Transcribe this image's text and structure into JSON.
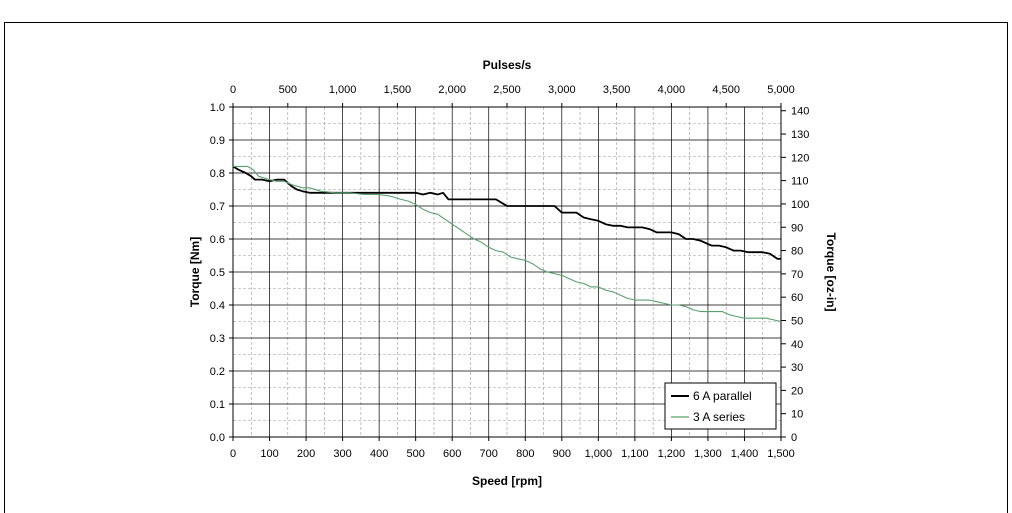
{
  "chart_data": {
    "type": "line",
    "title": "",
    "xlabel": "Speed [rpm]",
    "ylabel": "Torque [Nm]",
    "x2label": "Pulses/s",
    "y2label": "Torque [oz-in]",
    "xlim": [
      0,
      1500
    ],
    "ylim": [
      0,
      1.0
    ],
    "x2lim": [
      0,
      5000
    ],
    "y2lim": [
      0,
      141.6
    ],
    "grid": true,
    "legend_position": "bottom-right",
    "x_ticks": [
      "0",
      "100",
      "200",
      "300",
      "400",
      "500",
      "600",
      "700",
      "800",
      "900",
      "1,000",
      "1,100",
      "1,200",
      "1,300",
      "1,400",
      "1,500"
    ],
    "y_ticks": [
      "0.0",
      "0.1",
      "0.2",
      "0.3",
      "0.4",
      "0.5",
      "0.6",
      "0.7",
      "0.8",
      "0.9",
      "1.0"
    ],
    "x2_ticks": [
      "0",
      "500",
      "1,000",
      "1,500",
      "2,000",
      "2,500",
      "3,000",
      "3,500",
      "4,000",
      "4,500",
      "5,000"
    ],
    "y2_ticks": [
      "0",
      "10",
      "20",
      "30",
      "40",
      "50",
      "60",
      "70",
      "80",
      "90",
      "100",
      "110",
      "120",
      "130",
      "140"
    ],
    "series": [
      {
        "name": "6 A parallel",
        "color": "#000000",
        "x": [
          0,
          15,
          35,
          50,
          60,
          80,
          100,
          120,
          140,
          150,
          160,
          175,
          190,
          210,
          240,
          300,
          400,
          500,
          520,
          540,
          560,
          575,
          590,
          620,
          660,
          700,
          720,
          735,
          750,
          790,
          830,
          860,
          880,
          900,
          920,
          940,
          960,
          980,
          1000,
          1020,
          1040,
          1060,
          1080,
          1100,
          1120,
          1140,
          1160,
          1180,
          1200,
          1220,
          1240,
          1260,
          1280,
          1300,
          1310,
          1330,
          1350,
          1370,
          1390,
          1410,
          1430,
          1450,
          1470,
          1490,
          1500
        ],
        "y": [
          0.82,
          0.81,
          0.8,
          0.79,
          0.78,
          0.78,
          0.775,
          0.78,
          0.78,
          0.77,
          0.76,
          0.75,
          0.745,
          0.74,
          0.74,
          0.74,
          0.74,
          0.74,
          0.735,
          0.74,
          0.735,
          0.74,
          0.72,
          0.72,
          0.72,
          0.72,
          0.72,
          0.71,
          0.7,
          0.7,
          0.7,
          0.7,
          0.7,
          0.68,
          0.68,
          0.68,
          0.665,
          0.66,
          0.655,
          0.645,
          0.64,
          0.64,
          0.635,
          0.635,
          0.635,
          0.63,
          0.62,
          0.62,
          0.62,
          0.615,
          0.6,
          0.6,
          0.595,
          0.585,
          0.58,
          0.58,
          0.575,
          0.565,
          0.565,
          0.56,
          0.56,
          0.56,
          0.555,
          0.54,
          0.54
        ]
      },
      {
        "name": "3 A series",
        "color": "#5aa06c",
        "x": [
          0,
          40,
          55,
          70,
          100,
          120,
          140,
          150,
          160,
          175,
          190,
          210,
          240,
          280,
          320,
          360,
          400,
          430,
          460,
          480,
          500,
          520,
          540,
          560,
          580,
          600,
          620,
          640,
          660,
          680,
          700,
          720,
          740,
          760,
          780,
          800,
          820,
          840,
          860,
          880,
          900,
          920,
          940,
          960,
          980,
          1000,
          1020,
          1040,
          1060,
          1080,
          1100,
          1120,
          1140,
          1160,
          1180,
          1200,
          1220,
          1240,
          1260,
          1280,
          1300,
          1320,
          1340,
          1360,
          1380,
          1400,
          1420,
          1440,
          1460,
          1480,
          1500
        ],
        "y": [
          0.82,
          0.82,
          0.81,
          0.79,
          0.78,
          0.775,
          0.775,
          0.77,
          0.765,
          0.76,
          0.755,
          0.755,
          0.745,
          0.74,
          0.74,
          0.735,
          0.735,
          0.73,
          0.72,
          0.715,
          0.705,
          0.69,
          0.68,
          0.675,
          0.66,
          0.645,
          0.63,
          0.615,
          0.6,
          0.59,
          0.575,
          0.565,
          0.56,
          0.545,
          0.54,
          0.535,
          0.525,
          0.51,
          0.5,
          0.495,
          0.49,
          0.48,
          0.47,
          0.465,
          0.455,
          0.455,
          0.445,
          0.44,
          0.43,
          0.42,
          0.415,
          0.415,
          0.415,
          0.41,
          0.405,
          0.4,
          0.4,
          0.395,
          0.385,
          0.38,
          0.38,
          0.38,
          0.38,
          0.37,
          0.365,
          0.36,
          0.36,
          0.36,
          0.36,
          0.355,
          0.35
        ]
      }
    ]
  }
}
